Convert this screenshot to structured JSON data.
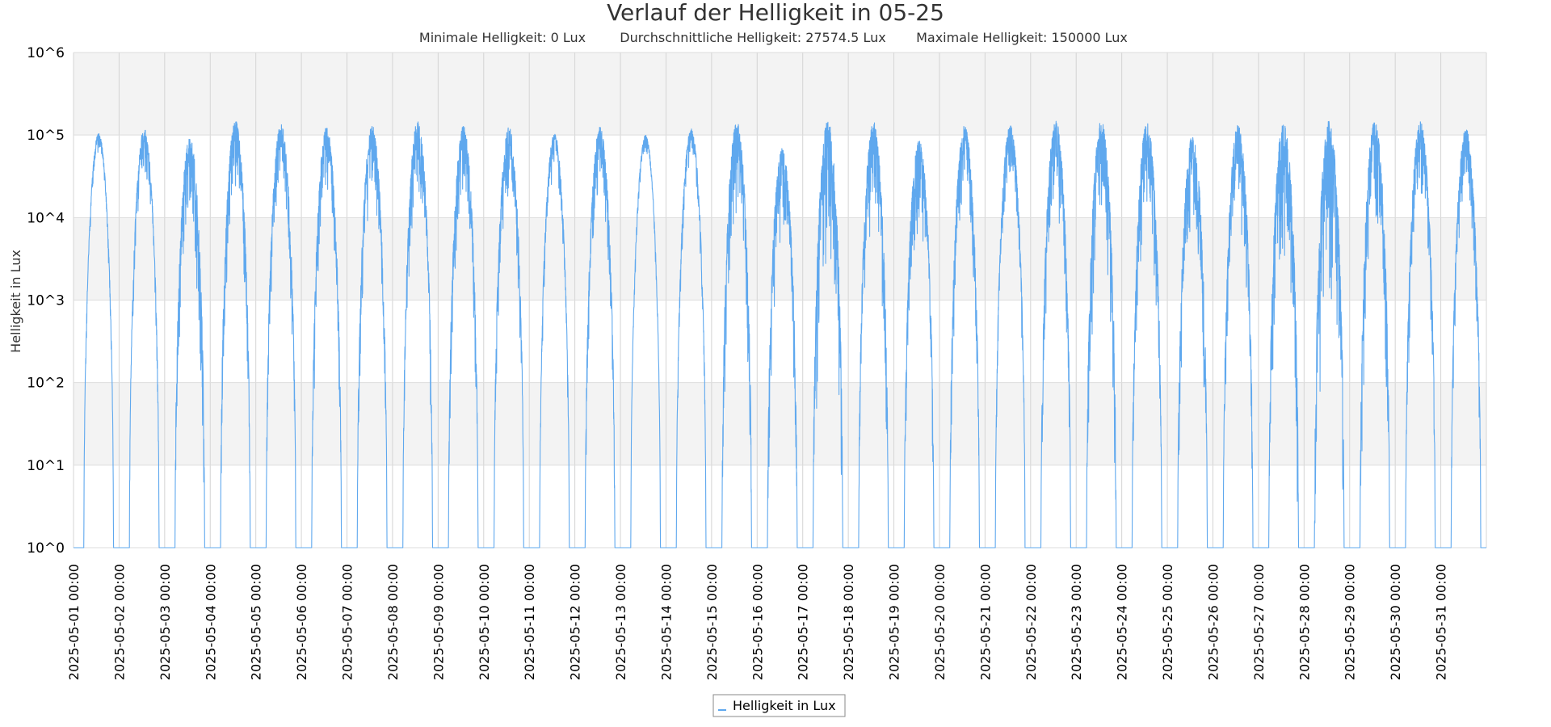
{
  "chart_data": {
    "type": "line",
    "title": "Verlauf der Helligkeit in 05-25",
    "subtitle": {
      "min": "Minimale Helligkeit: 0 Lux",
      "avg": "Durchschnittliche Helligkeit: 27574.5 Lux",
      "max": "Maximale Helligkeit: 150000 Lux"
    },
    "xlabel": "",
    "ylabel": "Helligkeit in Lux",
    "y_scale": "log",
    "ylim": [
      1,
      1000000
    ],
    "y_ticks": [
      "10^0",
      "10^1",
      "10^2",
      "10^3",
      "10^4",
      "10^5",
      "10^6"
    ],
    "x_start": "2025-05-01 00:00",
    "x_end": "2025-06-01 00:00",
    "x_ticks": [
      "2025-05-01 00:00",
      "2025-05-02 00:00",
      "2025-05-03 00:00",
      "2025-05-04 00:00",
      "2025-05-05 00:00",
      "2025-05-06 00:00",
      "2025-05-07 00:00",
      "2025-05-08 00:00",
      "2025-05-09 00:00",
      "2025-05-10 00:00",
      "2025-05-11 00:00",
      "2025-05-12 00:00",
      "2025-05-13 00:00",
      "2025-05-14 00:00",
      "2025-05-15 00:00",
      "2025-05-16 00:00",
      "2025-05-17 00:00",
      "2025-05-18 00:00",
      "2025-05-19 00:00",
      "2025-05-20 00:00",
      "2025-05-21 00:00",
      "2025-05-22 00:00",
      "2025-05-23 00:00",
      "2025-05-24 00:00",
      "2025-05-25 00:00",
      "2025-05-26 00:00",
      "2025-05-27 00:00",
      "2025-05-28 00:00",
      "2025-05-29 00:00",
      "2025-05-30 00:00",
      "2025-05-31 00:00"
    ],
    "grid": true,
    "legend": {
      "position": "bottom",
      "entries": [
        "Helligkeit in Lux"
      ]
    },
    "series": [
      {
        "name": "Helligkeit in Lux",
        "color": "#5fa8ee",
        "daily_peak_lux": [
          105000,
          120000,
          95000,
          150000,
          135000,
          125000,
          130000,
          150000,
          130000,
          125000,
          105000,
          125000,
          100000,
          120000,
          145000,
          70000,
          150000,
          145000,
          85000,
          130000,
          130000,
          150000,
          150000,
          140000,
          100000,
          135000,
          150000,
          150000,
          150000,
          145000,
          120000
        ],
        "daily_min_day_lux": [
          60000,
          30000,
          5000,
          15000,
          20000,
          15000,
          15000,
          15000,
          15000,
          15000,
          30000,
          15000,
          60000,
          40000,
          10000,
          3000,
          2000,
          8000,
          5000,
          15000,
          30000,
          10000,
          5000,
          8000,
          5000,
          8000,
          2000,
          1000,
          5000,
          15000,
          20000
        ],
        "sunrise": "05:30",
        "sunset": "21:00",
        "night_lux": 1
      }
    ]
  }
}
